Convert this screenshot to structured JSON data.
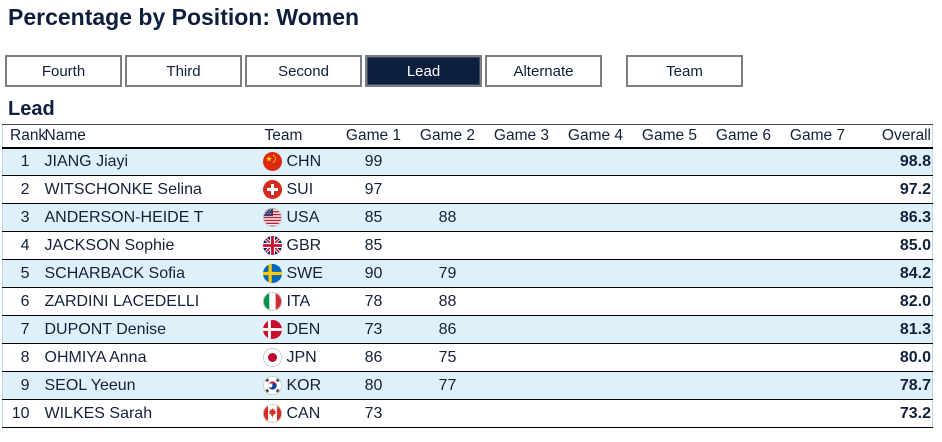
{
  "page_title": "Percentage by Position: Women",
  "tabs": [
    {
      "label": "Fourth",
      "active": false,
      "separated": false
    },
    {
      "label": "Third",
      "active": false,
      "separated": false
    },
    {
      "label": "Second",
      "active": false,
      "separated": false
    },
    {
      "label": "Lead",
      "active": true,
      "separated": false
    },
    {
      "label": "Alternate",
      "active": false,
      "separated": false
    },
    {
      "label": "Team",
      "active": false,
      "separated": true
    }
  ],
  "section_title": "Lead",
  "table": {
    "columns": [
      "Rank",
      "Name",
      "Team",
      "Game 1",
      "Game 2",
      "Game 3",
      "Game 4",
      "Game 5",
      "Game 6",
      "Game 7",
      "Overall"
    ],
    "rows": [
      {
        "rank": "1",
        "name": "JIANG Jiayi",
        "team": "CHN",
        "games": [
          "99",
          "",
          "",
          "",
          "",
          "",
          ""
        ],
        "overall": "98.8"
      },
      {
        "rank": "2",
        "name": "WITSCHONKE Selina",
        "team": "SUI",
        "games": [
          "97",
          "",
          "",
          "",
          "",
          "",
          ""
        ],
        "overall": "97.2"
      },
      {
        "rank": "3",
        "name": "ANDERSON-HEIDE T",
        "team": "USA",
        "games": [
          "85",
          "88",
          "",
          "",
          "",
          "",
          ""
        ],
        "overall": "86.3"
      },
      {
        "rank": "4",
        "name": "JACKSON Sophie",
        "team": "GBR",
        "games": [
          "85",
          "",
          "",
          "",
          "",
          "",
          ""
        ],
        "overall": "85.0"
      },
      {
        "rank": "5",
        "name": "SCHARBACK Sofia",
        "team": "SWE",
        "games": [
          "90",
          "79",
          "",
          "",
          "",
          "",
          ""
        ],
        "overall": "84.2"
      },
      {
        "rank": "6",
        "name": "ZARDINI LACEDELLI",
        "team": "ITA",
        "games": [
          "78",
          "88",
          "",
          "",
          "",
          "",
          ""
        ],
        "overall": "82.0"
      },
      {
        "rank": "7",
        "name": "DUPONT Denise",
        "team": "DEN",
        "games": [
          "73",
          "86",
          "",
          "",
          "",
          "",
          ""
        ],
        "overall": "81.3"
      },
      {
        "rank": "8",
        "name": "OHMIYA Anna",
        "team": "JPN",
        "games": [
          "86",
          "75",
          "",
          "",
          "",
          "",
          ""
        ],
        "overall": "80.0"
      },
      {
        "rank": "9",
        "name": "SEOL Yeeun",
        "team": "KOR",
        "games": [
          "80",
          "77",
          "",
          "",
          "",
          "",
          ""
        ],
        "overall": "78.7"
      },
      {
        "rank": "10",
        "name": "WILKES Sarah",
        "team": "CAN",
        "games": [
          "73",
          "",
          "",
          "",
          "",
          "",
          ""
        ],
        "overall": "73.2"
      }
    ]
  },
  "colors": {
    "accent_navy": "#0e1f3e",
    "row_highlight": "#def0f9"
  }
}
